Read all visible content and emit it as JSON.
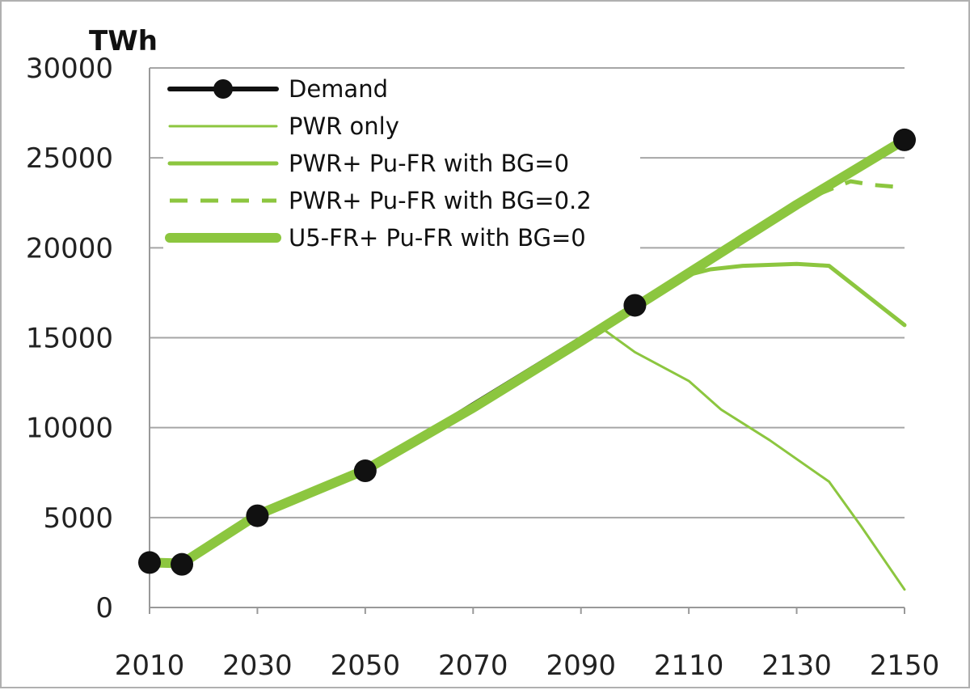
{
  "chart_data": {
    "type": "line",
    "ylabel": "TWh",
    "xlim": [
      2010,
      2150
    ],
    "ylim": [
      0,
      30000
    ],
    "x_ticks": [
      2010,
      2030,
      2050,
      2070,
      2090,
      2110,
      2130,
      2150
    ],
    "y_ticks": [
      0,
      5000,
      10000,
      15000,
      20000,
      25000,
      30000
    ],
    "grid": "horizontal",
    "legend_position": "top-left",
    "colors": {
      "demand": "#111111",
      "green": "#8cc63f",
      "grid": "#a6a6a6",
      "axis": "#999999"
    },
    "series": [
      {
        "name": "Demand",
        "style": "black-markers",
        "points": [
          [
            2010,
            2500
          ],
          [
            2016,
            2400
          ],
          [
            2030,
            5100
          ],
          [
            2050,
            7600
          ],
          [
            2100,
            16800
          ],
          [
            2150,
            26000
          ]
        ]
      },
      {
        "name": "PWR only",
        "style": "thin",
        "points": [
          [
            2010,
            2500
          ],
          [
            2016,
            2450
          ],
          [
            2030,
            5150
          ],
          [
            2050,
            7650
          ],
          [
            2070,
            11100
          ],
          [
            2090,
            14800
          ],
          [
            2094,
            15500
          ],
          [
            2100,
            14200
          ],
          [
            2110,
            12600
          ],
          [
            2116,
            11000
          ],
          [
            2125,
            9300
          ],
          [
            2136,
            7000
          ],
          [
            2142,
            4500
          ],
          [
            2150,
            1000
          ]
        ]
      },
      {
        "name": "PWR+ Pu-FR with BG=0",
        "style": "medium",
        "points": [
          [
            2010,
            2500
          ],
          [
            2016,
            2450
          ],
          [
            2030,
            5150
          ],
          [
            2050,
            7650
          ],
          [
            2070,
            11100
          ],
          [
            2090,
            14800
          ],
          [
            2100,
            16700
          ],
          [
            2110,
            18500
          ],
          [
            2114,
            18800
          ],
          [
            2120,
            19000
          ],
          [
            2130,
            19100
          ],
          [
            2136,
            19000
          ],
          [
            2150,
            15700
          ]
        ]
      },
      {
        "name": "PWR+ Pu-FR with BG=0.2",
        "style": "dashed",
        "points": [
          [
            2010,
            2500
          ],
          [
            2016,
            2450
          ],
          [
            2030,
            5150
          ],
          [
            2050,
            7650
          ],
          [
            2070,
            11100
          ],
          [
            2090,
            14800
          ],
          [
            2100,
            16700
          ],
          [
            2110,
            18700
          ],
          [
            2120,
            20700
          ],
          [
            2130,
            22500
          ],
          [
            2140,
            23700
          ],
          [
            2144,
            23500
          ],
          [
            2148,
            23400
          ]
        ]
      },
      {
        "name": "U5-FR+ Pu-FR with BG=0",
        "style": "thick",
        "points": [
          [
            2010,
            2500
          ],
          [
            2016,
            2450
          ],
          [
            2030,
            5150
          ],
          [
            2050,
            7650
          ],
          [
            2070,
            11100
          ],
          [
            2090,
            14800
          ],
          [
            2100,
            16700
          ],
          [
            2110,
            18600
          ],
          [
            2120,
            20500
          ],
          [
            2130,
            22400
          ],
          [
            2140,
            24200
          ],
          [
            2150,
            26000
          ]
        ]
      }
    ]
  }
}
